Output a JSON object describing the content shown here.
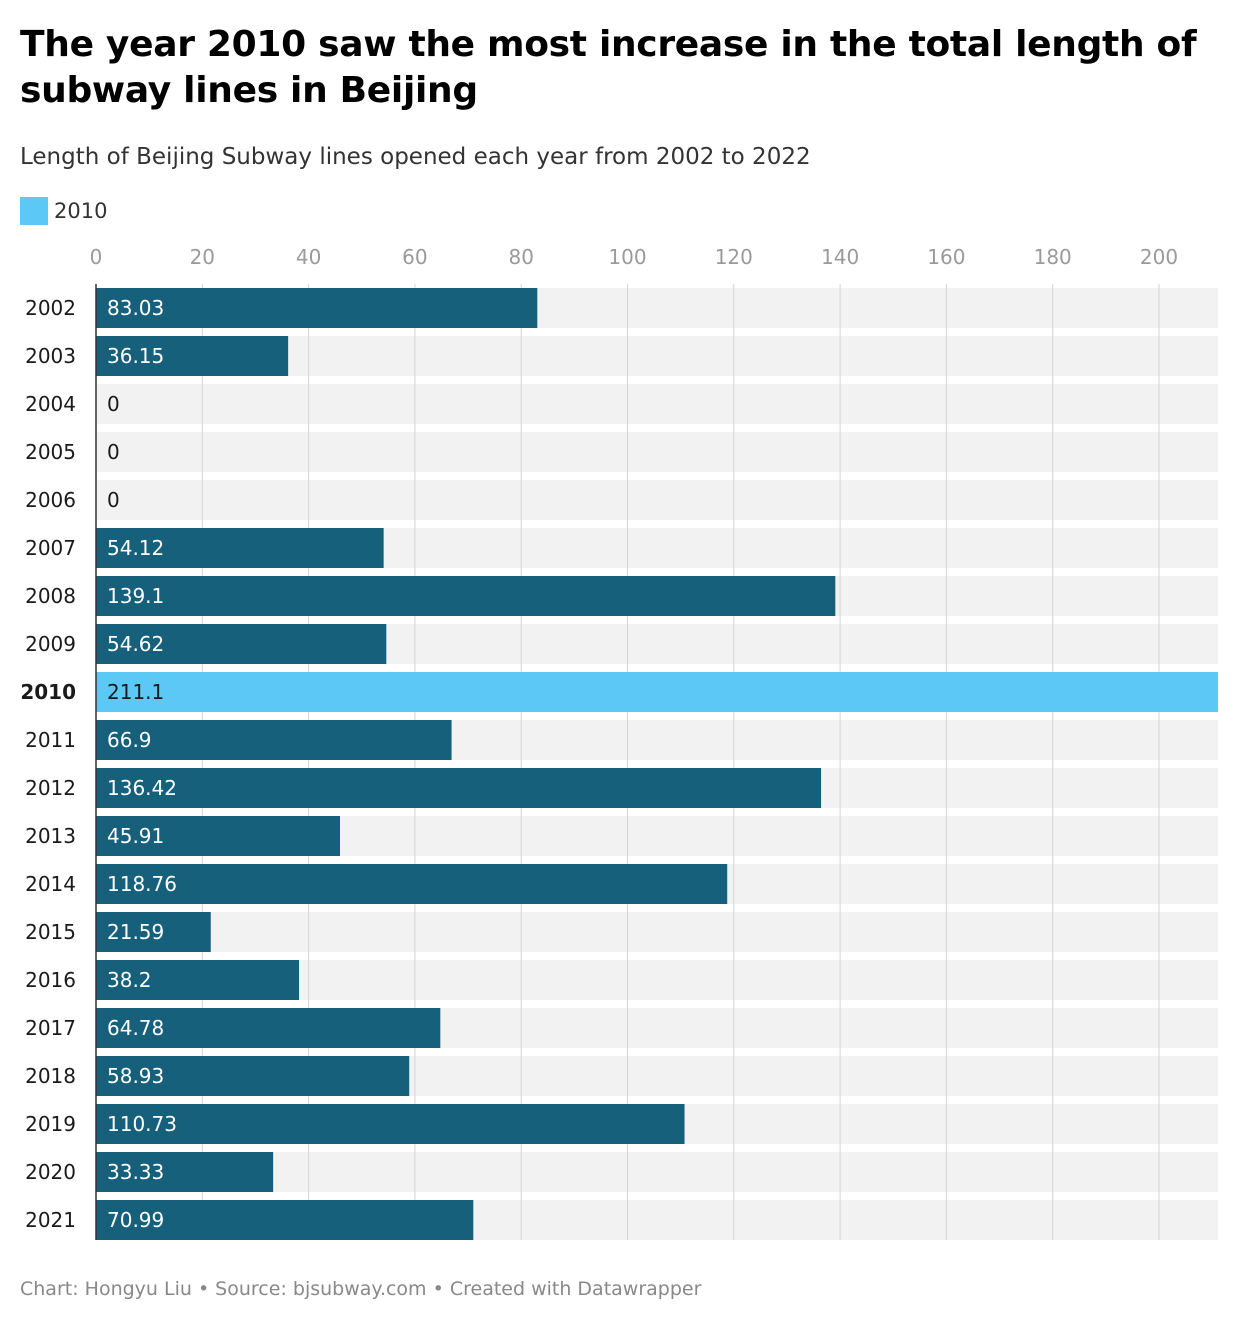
{
  "header": {
    "title": "The year 2010 saw the most increase in the total length of subway lines in Beijing",
    "subtitle": "Length of Beijing Subway lines opened each year from 2002 to 2022"
  },
  "legend": {
    "label": "2010",
    "color": "#5bc8f5"
  },
  "colors": {
    "default_bar": "#17607c",
    "highlight_bar": "#5bc8f5",
    "row_background": "#f2f2f2",
    "grid": "#d4d4d4",
    "tick_text": "#9a9a9a"
  },
  "chart_data": {
    "type": "bar",
    "orientation": "horizontal",
    "categories": [
      "2002",
      "2003",
      "2004",
      "2005",
      "2006",
      "2007",
      "2008",
      "2009",
      "2010",
      "2011",
      "2012",
      "2013",
      "2014",
      "2015",
      "2016",
      "2017",
      "2018",
      "2019",
      "2020",
      "2021"
    ],
    "values": [
      83.03,
      36.15,
      0,
      0,
      0,
      54.12,
      139.1,
      54.62,
      211.1,
      66.9,
      136.42,
      45.91,
      118.76,
      21.59,
      38.2,
      64.78,
      58.93,
      110.73,
      33.33,
      70.99
    ],
    "value_labels": [
      "83.03",
      "36.15",
      "0",
      "0",
      "0",
      "54.12",
      "139.1",
      "54.62",
      "211.1",
      "66.9",
      "136.42",
      "45.91",
      "118.76",
      "21.59",
      "38.2",
      "64.78",
      "58.93",
      "110.73",
      "33.33",
      "70.99"
    ],
    "highlight": "2010",
    "x_ticks": [
      0,
      20,
      40,
      60,
      80,
      100,
      120,
      140,
      160,
      180,
      200
    ],
    "xlim": [
      0,
      211.1
    ],
    "grid": true,
    "axis_position": "top"
  },
  "footer": {
    "text": "Chart: Hongyu Liu • Source: bjsubway.com • Created with Datawrapper"
  }
}
